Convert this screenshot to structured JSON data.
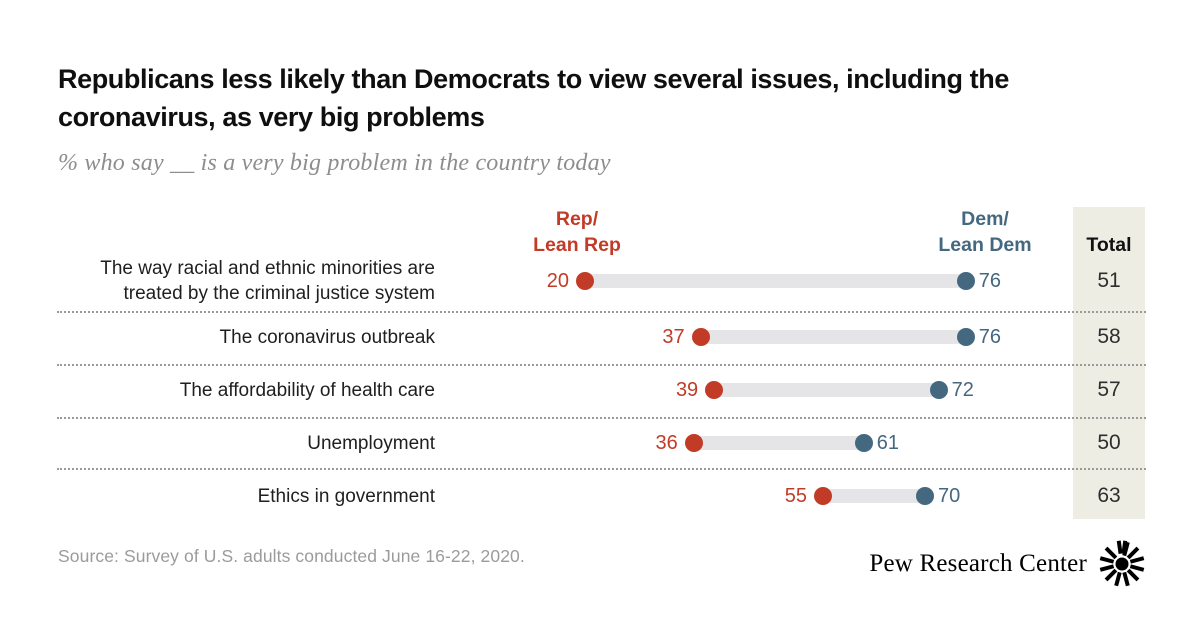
{
  "header": {
    "title": "Republicans less likely than Democrats to view several issues, including the coronavirus, as very big problems",
    "subtitle": "% who say __ is a very big problem in the country today"
  },
  "chart_data": {
    "type": "dumbbell",
    "title": "Republicans less likely than Democrats to view several issues, including the coronavirus, as very big problems",
    "subtitle": "% who say __ is a very big problem in the country today",
    "xlim": [
      0,
      100
    ],
    "units": "percent",
    "col_headers": {
      "rep": "Rep/\nLean Rep",
      "dem": "Dem/\nLean Dem",
      "total": "Total"
    },
    "colors": {
      "rep": "#c23b27",
      "dem": "#44687f",
      "bar": "#e5e5e7",
      "total_column_bg": "#eeede4"
    },
    "rows": [
      {
        "label": "The way racial and ethnic minorities are treated by the criminal justice system",
        "rep": 20,
        "dem": 76,
        "total": 51
      },
      {
        "label": "The coronavirus outbreak",
        "rep": 37,
        "dem": 76,
        "total": 58
      },
      {
        "label": "The affordability of health care",
        "rep": 39,
        "dem": 72,
        "total": 57
      },
      {
        "label": "Unemployment",
        "rep": 36,
        "dem": 61,
        "total": 50
      },
      {
        "label": "Ethics in government",
        "rep": 55,
        "dem": 70,
        "total": 63
      }
    ]
  },
  "footer": {
    "source": "Source: Survey of U.S. adults conducted June 16-22, 2020.",
    "brand": "Pew Research Center"
  }
}
